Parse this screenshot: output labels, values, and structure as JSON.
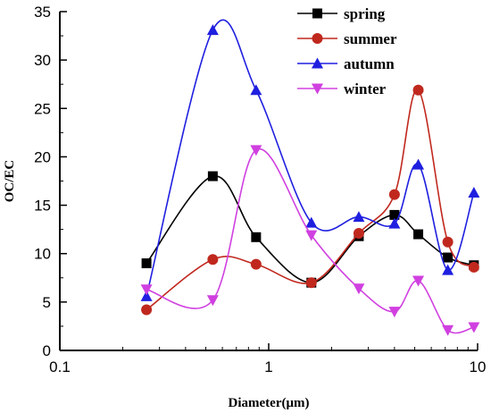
{
  "chart_data": {
    "type": "line",
    "xlabel": "Diameter(μm)",
    "ylabel": "OC/EC",
    "xscale": "log",
    "xlim": [
      0.1,
      10
    ],
    "ylim": [
      0,
      35
    ],
    "x_ticks": [
      0.1,
      1,
      10
    ],
    "x_tick_labels": [
      "0.1",
      "1",
      "10"
    ],
    "y_ticks": [
      0,
      5,
      10,
      15,
      20,
      25,
      30,
      35
    ],
    "y_tick_labels": [
      "0",
      "5",
      "10",
      "15",
      "20",
      "25",
      "30",
      "35"
    ],
    "legend_position": "top-right",
    "grid": false,
    "series": [
      {
        "name": "spring",
        "color": "#000000",
        "marker": "square",
        "x": [
          0.26,
          0.54,
          0.87,
          1.6,
          2.7,
          4.0,
          5.2,
          7.2,
          9.6
        ],
        "y": [
          9.0,
          18.0,
          11.7,
          7.0,
          11.8,
          14.0,
          12.0,
          9.6,
          8.8
        ]
      },
      {
        "name": "summer",
        "color": "#c0281e",
        "marker": "circle",
        "x": [
          0.26,
          0.54,
          0.87,
          1.6,
          2.7,
          4.0,
          5.2,
          7.2,
          9.6
        ],
        "y": [
          4.2,
          9.4,
          8.9,
          7.0,
          12.1,
          16.1,
          26.9,
          11.2,
          8.6
        ]
      },
      {
        "name": "autumn",
        "color": "#1f1fe0",
        "marker": "triangle-up",
        "x": [
          0.26,
          0.54,
          0.87,
          1.6,
          2.7,
          4.0,
          5.2,
          7.2,
          9.6
        ],
        "y": [
          5.6,
          33.1,
          26.9,
          13.2,
          13.8,
          13.1,
          19.2,
          8.3,
          16.3
        ]
      },
      {
        "name": "winter",
        "color": "#d040e0",
        "marker": "triangle-down",
        "x": [
          0.26,
          0.54,
          0.87,
          1.6,
          2.7,
          4.0,
          5.2,
          7.2,
          9.6
        ],
        "y": [
          6.3,
          5.2,
          20.7,
          11.9,
          6.4,
          4.0,
          7.2,
          2.1,
          2.4
        ]
      }
    ]
  }
}
